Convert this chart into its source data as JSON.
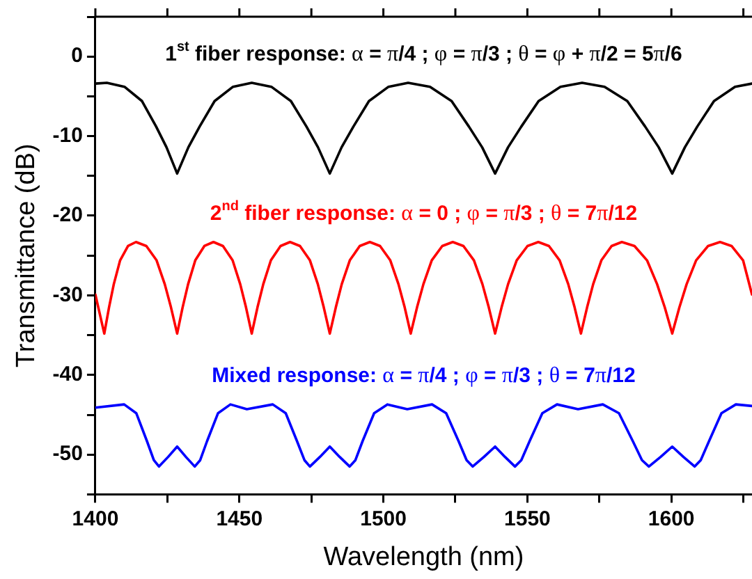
{
  "chart_data": {
    "type": "line",
    "xlabel": "Wavelength (nm)",
    "ylabel": "Transmittance (dB)",
    "xlim": [
      1400,
      1628
    ],
    "ylim": [
      -55,
      5
    ],
    "xticks": [
      1400,
      {
        "value": 1425,
        "label": null
      },
      1450,
      {
        "value": 1475,
        "label": null
      },
      1500,
      {
        "value": 1525,
        "label": null
      },
      1550,
      {
        "value": 1575,
        "label": null
      },
      1600,
      {
        "value": 1625,
        "label": null
      }
    ],
    "yticks": [
      {
        "value": -55,
        "label": null
      },
      -50,
      {
        "value": -45,
        "label": null
      },
      -40,
      {
        "value": -35,
        "label": null
      },
      -30,
      {
        "value": -25,
        "label": null
      },
      -20,
      {
        "value": -15,
        "label": null
      },
      -10,
      {
        "value": -5,
        "label": null
      },
      0,
      {
        "value": 5,
        "label": null
      }
    ],
    "legend": false,
    "marker": "none",
    "line_style": "solid",
    "series": [
      {
        "name": "1$^{st}$ fiber response: α = π/4 ; φ = π/3 ; θ = φ + π/2 = 5π/6",
        "color": "#000000",
        "x": [
          1400,
          1404,
          1410.1,
          1416.2,
          1421.1,
          1424.7,
          1428.4,
          1432.3,
          1436.2,
          1441.4,
          1447.8,
          1454.3,
          1461.1,
          1467.9,
          1473.3,
          1477.3,
          1481.4,
          1485.5,
          1489.6,
          1495.0,
          1501.8,
          1508.6,
          1516.2,
          1523.7,
          1529.7,
          1534.3,
          1538.8,
          1543.3,
          1547.9,
          1553.9,
          1561.5,
          1569,
          1576.8,
          1584.7,
          1590.9,
          1595.6,
          1600.3,
          1604.7,
          1609.0,
          1614.8,
          1622.1,
          1628
        ],
        "values": [
          -3.4,
          -3.3,
          -3.8,
          -5.6,
          -8.8,
          -11.4,
          -14.7,
          -11.4,
          -8.8,
          -5.6,
          -3.8,
          -3.3,
          -3.8,
          -5.6,
          -8.8,
          -11.4,
          -14.7,
          -11.4,
          -8.8,
          -5.6,
          -3.8,
          -3.3,
          -3.8,
          -5.6,
          -8.8,
          -11.4,
          -14.7,
          -11.4,
          -8.8,
          -5.6,
          -3.8,
          -3.3,
          -3.8,
          -5.6,
          -8.8,
          -11.4,
          -14.7,
          -11.4,
          -8.8,
          -5.6,
          -3.8,
          -3.4
        ]
      },
      {
        "name": "2$^{nd}$ fiber response: α = 0 ; φ = π/3 ; θ = 7π/12",
        "color": "#ff0000",
        "x": [
          1400,
          1403.1,
          1404.75,
          1406.4,
          1408.6,
          1411.35,
          1414.1,
          1417.7,
          1421.25,
          1424.1,
          1426.25,
          1428.4,
          1430.3,
          1432.2,
          1434.7,
          1437.85,
          1441,
          1444.3,
          1447.65,
          1450.3,
          1452.3,
          1454.3,
          1456.3,
          1458.3,
          1460.95,
          1464.3,
          1467.6,
          1471.05,
          1474.5,
          1477.25,
          1479.3,
          1481.4,
          1483.5,
          1485.55,
          1488.35,
          1491.8,
          1495.3,
          1498.85,
          1502.4,
          1505.25,
          1507.4,
          1509.5,
          1511.7,
          1513.9,
          1516.8,
          1520.45,
          1524.1,
          1527.8,
          1531.45,
          1534.4,
          1536.6,
          1538.8,
          1541.05,
          1543.3,
          1546.3,
          1550.05,
          1553.8,
          1557.5,
          1561.2,
          1564.2,
          1566.4,
          1568.6,
          1570.75,
          1572.85,
          1575.7,
          1579.25,
          1582.8,
          1587.2,
          1591.55,
          1595.05,
          1597.7,
          1600.3,
          1602.8,
          1605.3,
          1608.6,
          1612.75,
          1616.9,
          1620.9,
          1624.9,
          1628
        ],
        "values": [
          -29.9,
          -34.8,
          -31.5,
          -28.6,
          -25.6,
          -23.8,
          -23.3,
          -23.8,
          -25.6,
          -28.6,
          -31.5,
          -34.8,
          -31.5,
          -28.6,
          -25.6,
          -23.8,
          -23.3,
          -23.8,
          -25.6,
          -28.6,
          -31.5,
          -34.8,
          -31.5,
          -28.6,
          -25.6,
          -23.8,
          -23.3,
          -23.8,
          -25.6,
          -28.6,
          -31.5,
          -34.8,
          -31.5,
          -28.6,
          -25.6,
          -23.8,
          -23.3,
          -23.8,
          -25.6,
          -28.6,
          -31.5,
          -34.8,
          -31.5,
          -28.6,
          -25.6,
          -23.8,
          -23.3,
          -23.8,
          -25.6,
          -28.6,
          -31.5,
          -34.8,
          -31.5,
          -28.6,
          -25.6,
          -23.8,
          -23.3,
          -23.8,
          -25.6,
          -28.6,
          -31.5,
          -34.8,
          -31.5,
          -28.6,
          -25.6,
          -23.8,
          -23.3,
          -23.8,
          -25.6,
          -28.6,
          -31.5,
          -34.8,
          -31.5,
          -28.6,
          -25.6,
          -23.8,
          -23.3,
          -23.8,
          -25.6,
          -29.9
        ]
      },
      {
        "name": "Mixed response: α = π/4 ; φ = π/3 ; θ = 7π/12",
        "color": "#0000ff",
        "x": [
          1400,
          1410,
          1414.2,
          1417.9,
          1420.3,
          1422.1,
          1425.25,
          1428.4,
          1431.45,
          1434.5,
          1436.4,
          1438.8,
          1442.6,
          1446.9,
          1452.6,
          1461.6,
          1466.1,
          1470.0,
          1472.6,
          1474.5,
          1477.95,
          1481.4,
          1484.85,
          1488.3,
          1490.3,
          1492.8,
          1496.8,
          1501.4,
          1508.3,
          1516.9,
          1521.8,
          1526.1,
          1528.9,
          1531,
          1534.9,
          1538.8,
          1542.25,
          1545.7,
          1547.9,
          1550.8,
          1555.2,
          1560.3,
          1567.6,
          1576.2,
          1581.8,
          1586.6,
          1589.8,
          1592.2,
          1596.25,
          1600.3,
          1604.2,
          1608.1,
          1610.2,
          1613.1,
          1617.4,
          1622.4,
          1628
        ],
        "values": [
          -44.1,
          -43.7,
          -44.8,
          -48.3,
          -50.7,
          -51.5,
          -50.3,
          -49.0,
          -50.3,
          -51.5,
          -50.7,
          -48.3,
          -44.8,
          -43.7,
          -44.3,
          -43.7,
          -44.8,
          -48.3,
          -50.7,
          -51.5,
          -50.3,
          -49.0,
          -50.3,
          -51.5,
          -50.7,
          -48.3,
          -44.8,
          -43.7,
          -44.3,
          -43.7,
          -44.8,
          -48.3,
          -50.7,
          -51.5,
          -50.3,
          -49.0,
          -50.3,
          -51.5,
          -50.7,
          -48.3,
          -44.8,
          -43.7,
          -44.3,
          -43.7,
          -44.8,
          -48.3,
          -50.7,
          -51.5,
          -50.3,
          -49.0,
          -50.3,
          -51.5,
          -50.7,
          -48.3,
          -44.8,
          -43.7,
          -43.9
        ]
      }
    ]
  }
}
